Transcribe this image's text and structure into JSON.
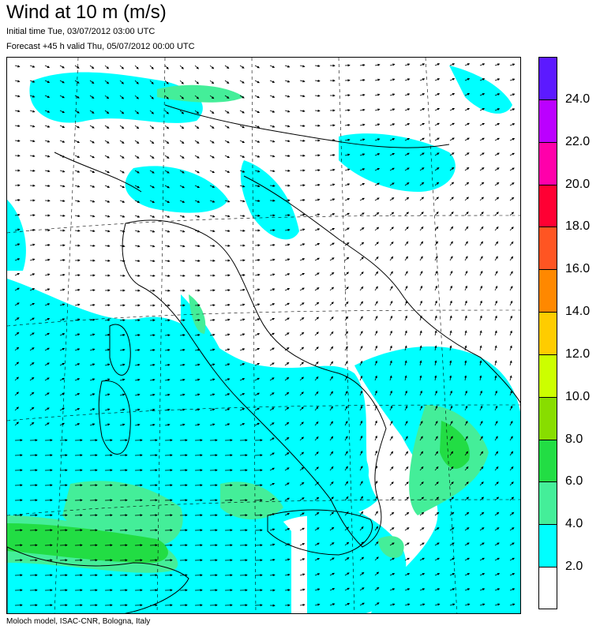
{
  "header": {
    "title": "Wind at 10 m (m/s)",
    "initial_time": "Initial time  Tue, 03/07/2012 03:00 UTC",
    "forecast": "Forecast +45 h valid  Thu, 05/07/2012 00:00 UTC"
  },
  "footer": {
    "credit": "Moloch model, ISAC-CNR, Bologna, Italy"
  },
  "colorbar": {
    "levels": [
      {
        "label": "24.0",
        "color": "#5c1aff"
      },
      {
        "label": "22.0",
        "color": "#bb00ff"
      },
      {
        "label": "20.0",
        "color": "#ff00aa"
      },
      {
        "label": "18.0",
        "color": "#ff0033"
      },
      {
        "label": "16.0",
        "color": "#ff5522"
      },
      {
        "label": "14.0",
        "color": "#ff8800"
      },
      {
        "label": "12.0",
        "color": "#ffcc00"
      },
      {
        "label": "10.0",
        "color": "#ccff00"
      },
      {
        "label": "8.0",
        "color": "#88dd00"
      },
      {
        "label": "6.0",
        "color": "#22dd44"
      },
      {
        "label": "4.0",
        "color": "#44ee99"
      },
      {
        "label": "2.0",
        "color": "#00ffff"
      },
      {
        "label": "",
        "color": "#ffffff"
      }
    ]
  },
  "map": {
    "region": "Italy",
    "wind_colors": {
      "weak": "#00ffff",
      "moderate": "#44ee99",
      "strong": "#22dd44"
    }
  }
}
